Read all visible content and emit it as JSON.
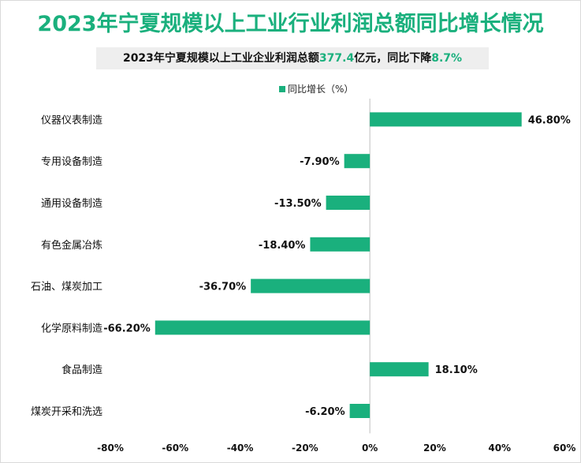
{
  "chart_data": {
    "type": "bar",
    "orientation": "horizontal",
    "title": "2023年宁夏规模以上工业行业利润总额同比增长情况",
    "subtitle": {
      "prefix": "2023年宁夏规模以上工业企业利润总额",
      "value1": "377.4",
      "middle": "亿元，同比下降",
      "value2": "8.7%"
    },
    "legend": "同比增长（%）",
    "legend_position": "top",
    "categories": [
      "仪器仪表制造",
      "专用设备制造",
      "通用设备制造",
      "有色金属冶炼",
      "石油、煤炭加工",
      "化学原料制造",
      "食品制造",
      "煤炭开采和洗选"
    ],
    "values": [
      46.8,
      -7.9,
      -13.5,
      -18.4,
      -36.7,
      -66.2,
      18.1,
      -6.2
    ],
    "value_labels": [
      "46.80%",
      "-7.90%",
      "-13.50%",
      "-18.40%",
      "-36.70%",
      "-66.20%",
      "18.10%",
      "-6.20%"
    ],
    "xlim": [
      -80,
      60
    ],
    "xticks": [
      -80,
      -60,
      -40,
      -20,
      0,
      20,
      40,
      60
    ],
    "xtick_labels": [
      "-80%",
      "-60%",
      "-40%",
      "-20%",
      "0%",
      "20%",
      "40%",
      "60%"
    ],
    "grid": false,
    "color": "#1ab07d"
  }
}
